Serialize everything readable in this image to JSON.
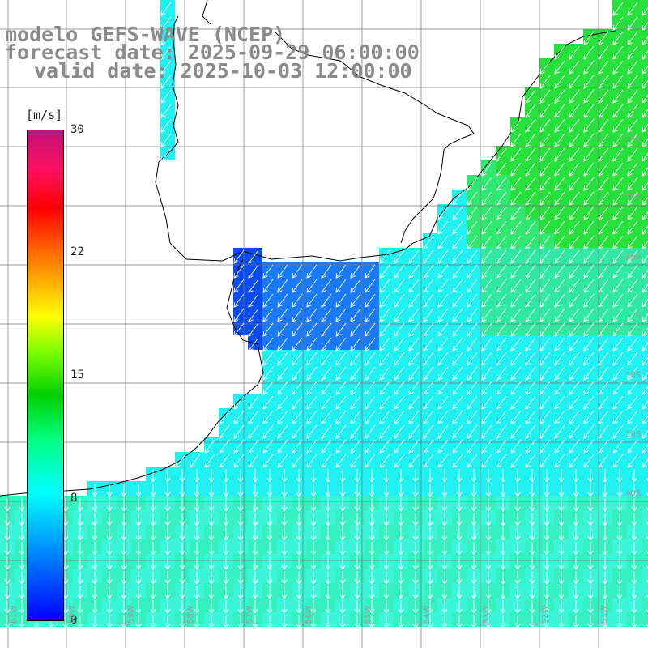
{
  "header": {
    "model_line": "modelo GEFS-WAVE (NCEP)",
    "forecast_line": "forecast date: 2025-09-29 06:00:00",
    "valid_line": "valid date: 2025-10-03 12:00:00"
  },
  "colorbar": {
    "unit": "[m/s]",
    "ticks": [
      {
        "label": "30",
        "value": 30
      },
      {
        "label": "22",
        "value": 22
      },
      {
        "label": "15",
        "value": 15
      },
      {
        "label": "8",
        "value": 8
      },
      {
        "label": "0",
        "value": 0
      }
    ],
    "range": [
      0,
      30
    ],
    "colors": [
      "#0000ff",
      "#0080ff",
      "#00ffff",
      "#00ff80",
      "#00d000",
      "#80ff00",
      "#ffff00",
      "#ff6000",
      "#ff0000",
      "#c0107a"
    ]
  },
  "map": {
    "grid_lines_lon": [
      "61W",
      "60W",
      "59W",
      "58W",
      "57W",
      "56W",
      "55W",
      "54W",
      "53W",
      "52W",
      "51W"
    ],
    "grid_lines_lat": [
      "34S",
      "35S",
      "36S",
      "37S",
      "38S",
      "39S",
      "40S"
    ],
    "lon_labels": [
      "61W",
      "60W",
      "59W",
      "58W",
      "57W",
      "56W",
      "55W",
      "54W",
      "53W",
      "52W",
      "51W"
    ],
    "lat_labels": [
      "34S",
      "35S",
      "36S",
      "37S",
      "38S",
      "39S",
      "40S"
    ],
    "arrow_color": "#ffffff",
    "coastline_color": "#000000",
    "land_color": "#ffffff",
    "wind_field_description": "wind speed shaded, arrows show direction"
  }
}
